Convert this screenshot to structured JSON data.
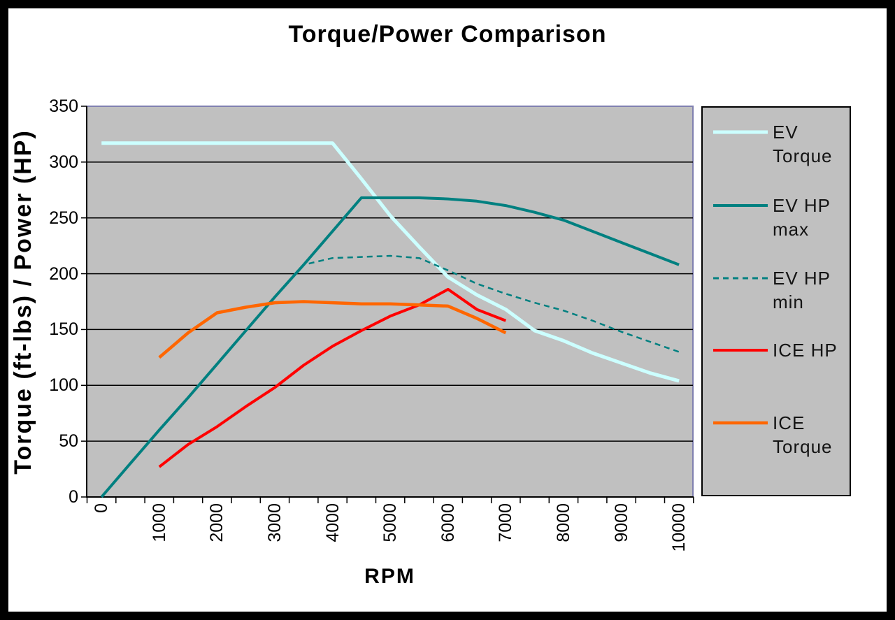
{
  "title": "Torque/Power Comparison",
  "colors": {
    "page_bg": "#ffffff",
    "frame": "#000000",
    "plot_bg": "#c0c0c0",
    "plot_border": "#8080b0",
    "grid": "#000000",
    "axis": "#000000",
    "text": "#000000",
    "legend_bg": "#c0c0c0",
    "legend_border": "#000000",
    "ev_torque": "#ccffff",
    "ev_hp": "#008080",
    "ice_hp": "#ff0000",
    "ice_torque": "#ff6600"
  },
  "chart_data": {
    "type": "line",
    "title": "Torque/Power Comparison",
    "xlabel": "RPM",
    "ylabel": "Torque (ft-lbs) / Power (HP)",
    "x": [
      0,
      500,
      1000,
      1500,
      2000,
      2500,
      3000,
      3500,
      4000,
      4500,
      5000,
      5500,
      6000,
      6500,
      7000,
      7500,
      8000,
      8500,
      9000,
      9500,
      10000
    ],
    "x_tick_labels": [
      "0",
      "1000",
      "2000",
      "3000",
      "4000",
      "5000",
      "6000",
      "7000",
      "8000",
      "9000",
      "10000"
    ],
    "x_tick_step": 1000,
    "y_ticks": [
      0,
      50,
      100,
      150,
      200,
      250,
      300,
      350
    ],
    "ylim": [
      0,
      350
    ],
    "grid": "horizontal-major",
    "legend_position": "right",
    "series": [
      {
        "name": "EV Torque",
        "legend_lines": [
          "EV",
          "Torque"
        ],
        "color_key": "ev_torque",
        "dash": null,
        "width": 5,
        "values": [
          317,
          317,
          317,
          317,
          317,
          317,
          317,
          317,
          317,
          285,
          252,
          224,
          197,
          181,
          168,
          149,
          140,
          129,
          120,
          111,
          104
        ]
      },
      {
        "name": "EV HP max",
        "legend_lines": [
          "EV HP",
          "max"
        ],
        "color_key": "ev_hp",
        "dash": null,
        "width": 4,
        "values": [
          0,
          30,
          60,
          89,
          119,
          149,
          179,
          208,
          238,
          268,
          268,
          268,
          267,
          265,
          261,
          255,
          248,
          238,
          228,
          218,
          208
        ]
      },
      {
        "name": "EV HP min",
        "legend_lines": [
          "EV HP",
          "min"
        ],
        "color_key": "ev_hp",
        "dash": "8,6",
        "width": 2.5,
        "values": [
          0,
          30,
          60,
          89,
          119,
          149,
          179,
          208,
          214,
          215,
          216,
          214,
          203,
          191,
          182,
          174,
          167,
          158,
          148,
          139,
          130
        ]
      },
      {
        "name": "ICE HP",
        "legend_lines": [
          "ICE HP"
        ],
        "color_key": "ice_hp",
        "dash": null,
        "width": 4,
        "values": [
          null,
          null,
          27,
          47,
          63,
          81,
          98,
          118,
          135,
          149,
          162,
          172,
          186,
          168,
          158,
          null,
          null,
          null,
          null,
          null,
          null
        ]
      },
      {
        "name": "ICE Torque",
        "legend_lines": [
          "ICE",
          "Torque"
        ],
        "color_key": "ice_torque",
        "dash": null,
        "width": 4.5,
        "values": [
          null,
          null,
          125,
          147,
          165,
          170,
          174,
          175,
          174,
          173,
          173,
          172,
          171,
          160,
          147,
          null,
          null,
          null,
          null,
          null,
          null
        ]
      }
    ]
  }
}
